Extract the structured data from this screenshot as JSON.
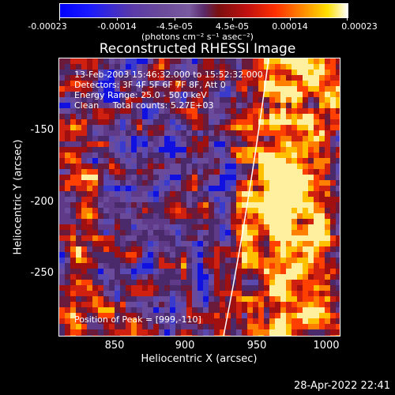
{
  "colorbar": {
    "ticks": [
      "-0.00023",
      "-0.00014",
      "-4.5e-05",
      "4.5e-05",
      "0.00014",
      "0.00023"
    ],
    "units_label": "(photons cm⁻² s⁻¹ asec⁻²)"
  },
  "plot": {
    "title": "Reconstructed RHESSI Image",
    "info_lines": [
      "13-Feb-2003 15:46:32.000 to 15:52:32.000",
      "Detectors: 3F 4F 5F 6F 7F 8F, Att 0",
      "Energy Range: 25.0 - 50.0 keV",
      "Clean     Total counts: 5.27E+03"
    ],
    "peak_label": "Position of Peak = [999,-110]",
    "y_ticks": [
      "-150",
      "-200",
      "-250"
    ],
    "x_ticks": [
      "850",
      "900",
      "950",
      "1000"
    ],
    "xlabel": "Heliocentric X (arcsec)",
    "ylabel": "Heliocentric Y (arcsec)"
  },
  "timestamp": "28-Apr-2022 22:41",
  "colors": {
    "background": "#000000",
    "axes": "#ffffff",
    "negative": "#0000ff",
    "neutral": "#4a2a7a",
    "positive_low": "#c01010",
    "positive_mid": "#ff9000",
    "positive_high": "#ffffff"
  }
}
